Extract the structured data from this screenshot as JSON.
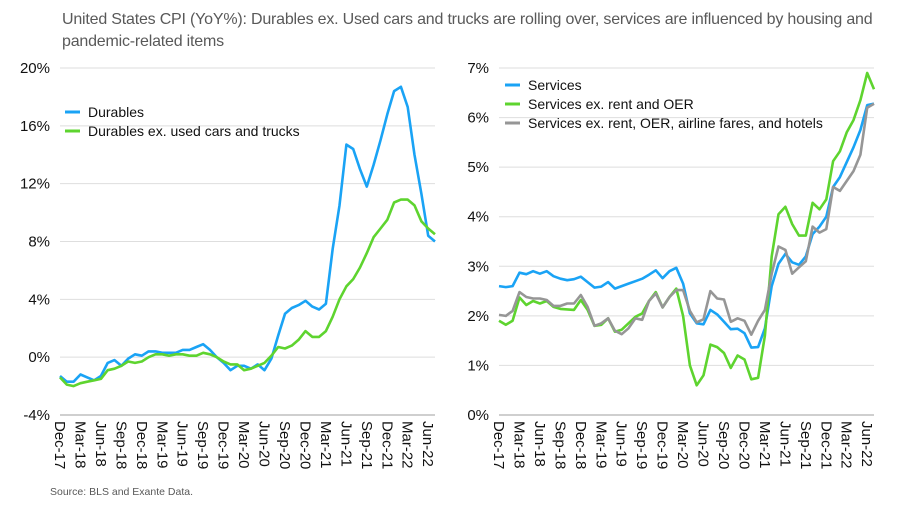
{
  "title": "United States CPI (YoY%): Durables ex. Used cars and trucks are rolling over, services are influenced by housing and pandemic-related items",
  "source": "Source: BLS and Exante Data.",
  "chart_data": [
    {
      "type": "line",
      "x_start": "Dec-17",
      "x_end": "Jul-22",
      "x_frequency": "monthly",
      "x_tick_labels": [
        "Dec-17",
        "Mar-18",
        "Jun-18",
        "Sep-18",
        "Dec-18",
        "Mar-19",
        "Jun-19",
        "Sep-19",
        "Dec-19",
        "Mar-20",
        "Jun-20",
        "Sep-20",
        "Dec-20",
        "Mar-21",
        "Jun-21",
        "Sep-21",
        "Dec-21",
        "Mar-22",
        "Jun-22"
      ],
      "ylim": [
        -4,
        20
      ],
      "y_ticks": [
        -4,
        0,
        4,
        8,
        12,
        16,
        20
      ],
      "y_tick_labels": [
        "-4%",
        "0%",
        "4%",
        "8%",
        "12%",
        "16%",
        "20%"
      ],
      "grid": true,
      "legend_placement": "top-left",
      "series": [
        {
          "name": "Durables",
          "color": "#1aa3f5",
          "values": [
            -1.3,
            -1.7,
            -1.7,
            -1.2,
            -1.4,
            -1.6,
            -1.3,
            -0.4,
            -0.2,
            -0.6,
            -0.1,
            0.2,
            0.1,
            0.4,
            0.4,
            0.3,
            0.3,
            0.3,
            0.5,
            0.5,
            0.7,
            0.9,
            0.5,
            0.0,
            -0.4,
            -0.9,
            -0.6,
            -0.6,
            -0.8,
            -0.5,
            -0.9,
            -0.1,
            1.5,
            3.0,
            3.4,
            3.6,
            3.9,
            3.5,
            3.3,
            3.7,
            7.5,
            10.5,
            14.7,
            14.4,
            13.0,
            11.8,
            13.3,
            15.0,
            16.8,
            18.4,
            18.7,
            17.3,
            14.0,
            11.3,
            8.4,
            8.0
          ]
        },
        {
          "name": "Durables ex. used cars and trucks",
          "color": "#5ed42f",
          "values": [
            -1.4,
            -1.9,
            -2.0,
            -1.8,
            -1.7,
            -1.6,
            -1.5,
            -0.9,
            -0.8,
            -0.6,
            -0.3,
            -0.4,
            -0.3,
            0.0,
            0.2,
            0.2,
            0.1,
            0.2,
            0.2,
            0.1,
            0.1,
            0.3,
            0.2,
            0.0,
            -0.3,
            -0.5,
            -0.5,
            -0.9,
            -0.8,
            -0.6,
            -0.4,
            0.1,
            0.7,
            0.6,
            0.8,
            1.2,
            1.8,
            1.4,
            1.4,
            1.8,
            2.8,
            4.0,
            4.9,
            5.4,
            6.2,
            7.2,
            8.3,
            8.9,
            9.5,
            10.7,
            10.9,
            10.9,
            10.5,
            9.4,
            8.9,
            8.5
          ]
        }
      ]
    },
    {
      "type": "line",
      "x_start": "Dec-17",
      "x_end": "Jul-22",
      "x_frequency": "monthly",
      "x_tick_labels": [
        "Dec-17",
        "Mar-18",
        "Jun-18",
        "Sep-18",
        "Dec-18",
        "Mar-19",
        "Jun-19",
        "Sep-19",
        "Dec-19",
        "Mar-20",
        "Jun-20",
        "Sep-20",
        "Dec-20",
        "Mar-21",
        "Jun-21",
        "Sep-21",
        "Dec-21",
        "Mar-22",
        "Jun-22"
      ],
      "ylim": [
        0,
        7
      ],
      "y_ticks": [
        0,
        1,
        2,
        3,
        4,
        5,
        6,
        7
      ],
      "y_tick_labels": [
        "0%",
        "1%",
        "2%",
        "3%",
        "4%",
        "5%",
        "6%",
        "7%"
      ],
      "grid": true,
      "legend_placement": "top-left",
      "series": [
        {
          "name": "Services",
          "color": "#1aa3f5",
          "values": [
            2.6,
            2.58,
            2.6,
            2.87,
            2.84,
            2.9,
            2.85,
            2.9,
            2.8,
            2.75,
            2.72,
            2.74,
            2.79,
            2.68,
            2.57,
            2.59,
            2.68,
            2.55,
            2.6,
            2.65,
            2.7,
            2.75,
            2.83,
            2.92,
            2.76,
            2.9,
            2.97,
            2.65,
            2.05,
            1.85,
            1.83,
            2.12,
            2.03,
            1.88,
            1.73,
            1.74,
            1.65,
            1.36,
            1.37,
            1.75,
            2.6,
            3.05,
            3.25,
            3.08,
            3.03,
            3.2,
            3.65,
            3.8,
            4.0,
            4.6,
            4.8,
            5.1,
            5.4,
            5.75,
            6.25,
            6.28
          ]
        },
        {
          "name": "Services ex. rent and OER",
          "color": "#5ed42f",
          "values": [
            1.9,
            1.82,
            1.9,
            2.37,
            2.22,
            2.3,
            2.25,
            2.3,
            2.18,
            2.14,
            2.13,
            2.12,
            2.32,
            2.12,
            1.8,
            1.82,
            1.95,
            1.68,
            1.72,
            1.85,
            1.98,
            2.05,
            2.3,
            2.48,
            2.17,
            2.38,
            2.55,
            2.0,
            1.0,
            0.6,
            0.8,
            1.42,
            1.37,
            1.25,
            0.95,
            1.2,
            1.12,
            0.72,
            0.75,
            1.6,
            3.2,
            4.05,
            4.2,
            3.85,
            3.62,
            3.62,
            4.28,
            4.15,
            4.35,
            5.12,
            5.32,
            5.7,
            5.95,
            6.35,
            6.9,
            6.57
          ]
        },
        {
          "name": "Services ex. rent, OER, airline fares, and hotels",
          "color": "#969696",
          "values": [
            2.02,
            2.0,
            2.1,
            2.48,
            2.38,
            2.35,
            2.35,
            2.32,
            2.2,
            2.2,
            2.25,
            2.25,
            2.42,
            2.18,
            1.8,
            1.85,
            1.95,
            1.7,
            1.63,
            1.75,
            1.95,
            1.92,
            2.3,
            2.45,
            2.17,
            2.38,
            2.52,
            2.52,
            2.1,
            1.87,
            1.93,
            2.5,
            2.35,
            2.33,
            1.88,
            1.95,
            1.9,
            1.62,
            1.9,
            2.12,
            2.85,
            3.4,
            3.33,
            2.85,
            2.98,
            3.1,
            3.8,
            3.68,
            3.75,
            4.6,
            4.52,
            4.72,
            4.92,
            5.25,
            6.2,
            6.28
          ]
        }
      ]
    }
  ]
}
